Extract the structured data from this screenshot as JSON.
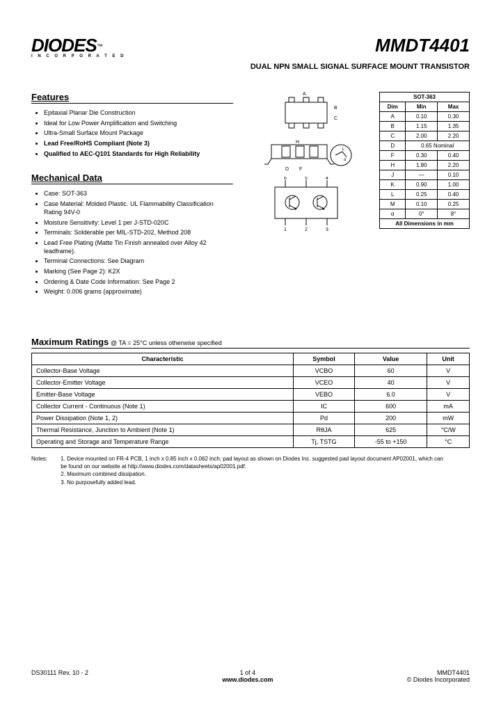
{
  "logo": {
    "main": "DIODES",
    "sub": "I N C O R P O R A T E D",
    "tm": "™"
  },
  "part_number": "MMDT4401",
  "subtitle": "DUAL NPN SMALL SIGNAL SURFACE MOUNT TRANSISTOR",
  "features": {
    "title": "Features",
    "items": [
      {
        "text": "Epitaxial Planar Die Construction",
        "bold": false
      },
      {
        "text": "Ideal for Low Power Amplification and Switching",
        "bold": false
      },
      {
        "text": "Ultra-Small Surface Mount Package",
        "bold": false
      },
      {
        "text": "Lead Free/RoHS Compliant (Note 3)",
        "bold": true
      },
      {
        "text": "Qualified to AEC-Q101 Standards for High Reliability",
        "bold": true
      }
    ]
  },
  "mechanical": {
    "title": "Mechanical Data",
    "items": [
      "Case: SOT-363",
      "Case Material: Molded Plastic. UL Flammability Classification Rating 94V-0",
      "Moisture Sensitivity: Level 1 per J-STD-020C",
      "Terminals: Solderable per MIL-STD-202, Method 208",
      "Lead Free Plating (Matte Tin Finish annealed over Alloy 42 leadframe).",
      "Terminal Connections: See Diagram",
      "Marking (See Page 2): K2X",
      "Ordering & Date Code Information: See Page 2",
      "Weight: 0.006 grams (approximate)"
    ]
  },
  "dim_table": {
    "caption": "SOT-363",
    "headers": [
      "Dim",
      "Min",
      "Max"
    ],
    "rows": [
      [
        "A",
        "0.10",
        "0.30"
      ],
      [
        "B",
        "1.15",
        "1.35"
      ],
      [
        "C",
        "2.00",
        "2.20"
      ],
      [
        "D",
        "0.65 Nominal",
        ""
      ],
      [
        "F",
        "0.30",
        "0.40"
      ],
      [
        "H",
        "1.80",
        "2.20"
      ],
      [
        "J",
        "—",
        "0.10"
      ],
      [
        "K",
        "0.90",
        "1.00"
      ],
      [
        "L",
        "0.25",
        "0.40"
      ],
      [
        "M",
        "0.10",
        "0.25"
      ],
      [
        "α",
        "0°",
        "8°"
      ]
    ],
    "footer": "All Dimensions in mm"
  },
  "ratings": {
    "title": "Maximum Ratings",
    "condition": "@ TA = 25°C unless otherwise specified",
    "headers": [
      "Characteristic",
      "Symbol",
      "Value",
      "Unit"
    ],
    "rows": [
      [
        "Collector-Base Voltage",
        "VCBO",
        "60",
        "V"
      ],
      [
        "Collector-Emitter Voltage",
        "VCEO",
        "40",
        "V"
      ],
      [
        "Emitter-Base Voltage",
        "VEBO",
        "6.0",
        "V"
      ],
      [
        "Collector Current - Continuous (Note 1)",
        "IC",
        "600",
        "mA"
      ],
      [
        "Power Dissipation (Note 1, 2)",
        "Pd",
        "200",
        "mW"
      ],
      [
        "Thermal Resistance, Junction to Ambient (Note 1)",
        "RθJA",
        "625",
        "°C/W"
      ],
      [
        "Operating and Storage and Temperature Range",
        "Tj, TSTG",
        "-55 to +150",
        "°C"
      ]
    ]
  },
  "notes": {
    "label": "Notes:",
    "items": [
      "1. Device mounted on FR-4 PCB, 1 inch x 0.85 inch x 0.062 inch; pad layout as shown on Diodes Inc. suggested pad layout document AP02001, which can be found on our website at http://www.diodes.com/datasheets/ap02001.pdf.",
      "2. Maximum combined dissipation.",
      "3. No purposefully added lead."
    ]
  },
  "footer": {
    "left": "DS30111 Rev. 10 - 2",
    "center_page": "1 of 4",
    "center_url": "www.diodes.com",
    "right_part": "MMDT4401",
    "right_copy": "© Diodes Incorporated"
  },
  "colors": {
    "text": "#000000",
    "bg": "#ffffff",
    "border": "#000000"
  }
}
